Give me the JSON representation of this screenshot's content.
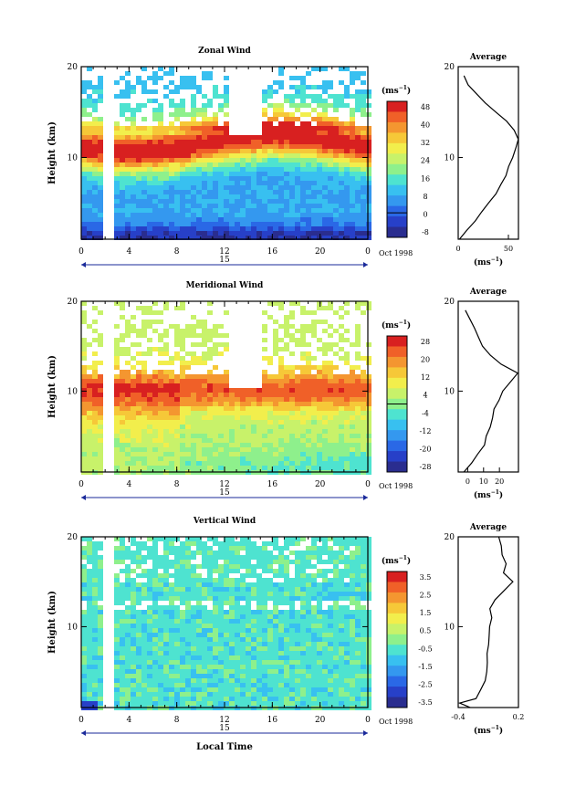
{
  "chart_data": [
    {
      "type": "heatmap",
      "title": "Zonal Wind",
      "ylabel": "Height (km)",
      "xticks": [
        "0",
        "4",
        "8",
        "12",
        "16",
        "20",
        "0"
      ],
      "yticks": [
        "10",
        "20"
      ],
      "ylim": [
        1,
        20
      ],
      "date_label": "15",
      "date_suffix": "Oct 1998",
      "colorbar": {
        "unit": "(ms",
        "unit_exp": "−1",
        "unit_close": ")",
        "labels": [
          "48",
          "40",
          "32",
          "24",
          "16",
          "8",
          "0",
          "-8"
        ]
      },
      "profile": {
        "title": "Average",
        "yticks": [
          "10",
          "20"
        ],
        "xticks": [
          "0",
          "50"
        ],
        "xlabel": "(ms",
        "xlabel_exp": "−1",
        "xlabel_close": ")",
        "xlim": [
          0,
          60
        ],
        "heights": [
          1,
          2,
          3,
          4,
          5,
          6,
          7,
          8,
          9,
          10,
          11,
          12,
          13,
          14,
          15,
          16,
          17,
          18,
          19
        ],
        "values": [
          2,
          8,
          16,
          24,
          31,
          37,
          43,
          48,
          51,
          54,
          57,
          60,
          56,
          48,
          38,
          27,
          18,
          10,
          5
        ]
      }
    },
    {
      "type": "heatmap",
      "title": "Meridional Wind",
      "ylabel": "Height (km)",
      "xticks": [
        "0",
        "4",
        "8",
        "12",
        "16",
        "20",
        "0"
      ],
      "yticks": [
        "10",
        "20"
      ],
      "ylim": [
        1,
        20
      ],
      "date_label": "15",
      "date_suffix": "Oct 1998",
      "colorbar": {
        "unit": "(ms",
        "unit_exp": "−1",
        "unit_close": ")",
        "labels": [
          "28",
          "20",
          "12",
          "4",
          "-4",
          "-12",
          "-20",
          "-28"
        ]
      },
      "profile": {
        "title": "Average",
        "yticks": [
          "10",
          "20"
        ],
        "xticks": [
          "0",
          "10",
          "20"
        ],
        "xlabel": "(ms",
        "xlabel_exp": "−1",
        "xlabel_close": ")",
        "xlim": [
          -6,
          32
        ],
        "heights": [
          1,
          2,
          3,
          4,
          5,
          6,
          7,
          8,
          9,
          10,
          11,
          12,
          13,
          14,
          15,
          16,
          17,
          18,
          19
        ],
        "values": [
          -3,
          2,
          6,
          10,
          12,
          14,
          16,
          17,
          20,
          22,
          27,
          31,
          21,
          14,
          9,
          7,
          4,
          2,
          -1
        ]
      }
    },
    {
      "type": "heatmap",
      "title": "Vertical Wind",
      "ylabel": "Height (km)",
      "xlabel": "Local Time",
      "xticks": [
        "0",
        "4",
        "8",
        "12",
        "16",
        "20",
        "0"
      ],
      "yticks": [
        "10",
        "20"
      ],
      "ylim": [
        1,
        20
      ],
      "date_label": "15",
      "date_suffix": "Oct 1998",
      "colorbar": {
        "unit": "(ms",
        "unit_exp": "−1",
        "unit_close": ")",
        "labels": [
          "3.5",
          "2.5",
          "1.5",
          "0.5",
          "-0.5",
          "-1.5",
          "-2.5",
          "-3.5"
        ]
      },
      "profile": {
        "title": "Average",
        "yticks": [
          "10",
          "20"
        ],
        "xticks": [
          "-0.4",
          "0.2"
        ],
        "xlabel": "(ms",
        "xlabel_exp": "−1",
        "xlabel_close": ")",
        "xlim": [
          -0.4,
          0.2
        ],
        "heights": [
          1,
          1.5,
          2,
          3,
          4,
          5,
          6,
          7,
          8,
          9,
          10,
          11,
          12,
          13,
          14,
          15,
          16,
          17,
          18,
          19,
          20
        ],
        "values": [
          -0.28,
          -0.38,
          -0.22,
          -0.18,
          -0.13,
          -0.12,
          -0.11,
          -0.12,
          -0.1,
          -0.09,
          -0.08,
          -0.06,
          -0.08,
          -0.03,
          0.05,
          0.15,
          0.05,
          0.08,
          0.04,
          0.02,
          0.01
        ]
      }
    }
  ],
  "colors": {
    "scale": [
      "#2a2d8f",
      "#2740c8",
      "#2a68e6",
      "#3498ef",
      "#38c0f0",
      "#4ee3d0",
      "#8ef08c",
      "#c8f26a",
      "#f2ee4c",
      "#f6c838",
      "#f49630",
      "#f06028",
      "#d82020"
    ]
  }
}
